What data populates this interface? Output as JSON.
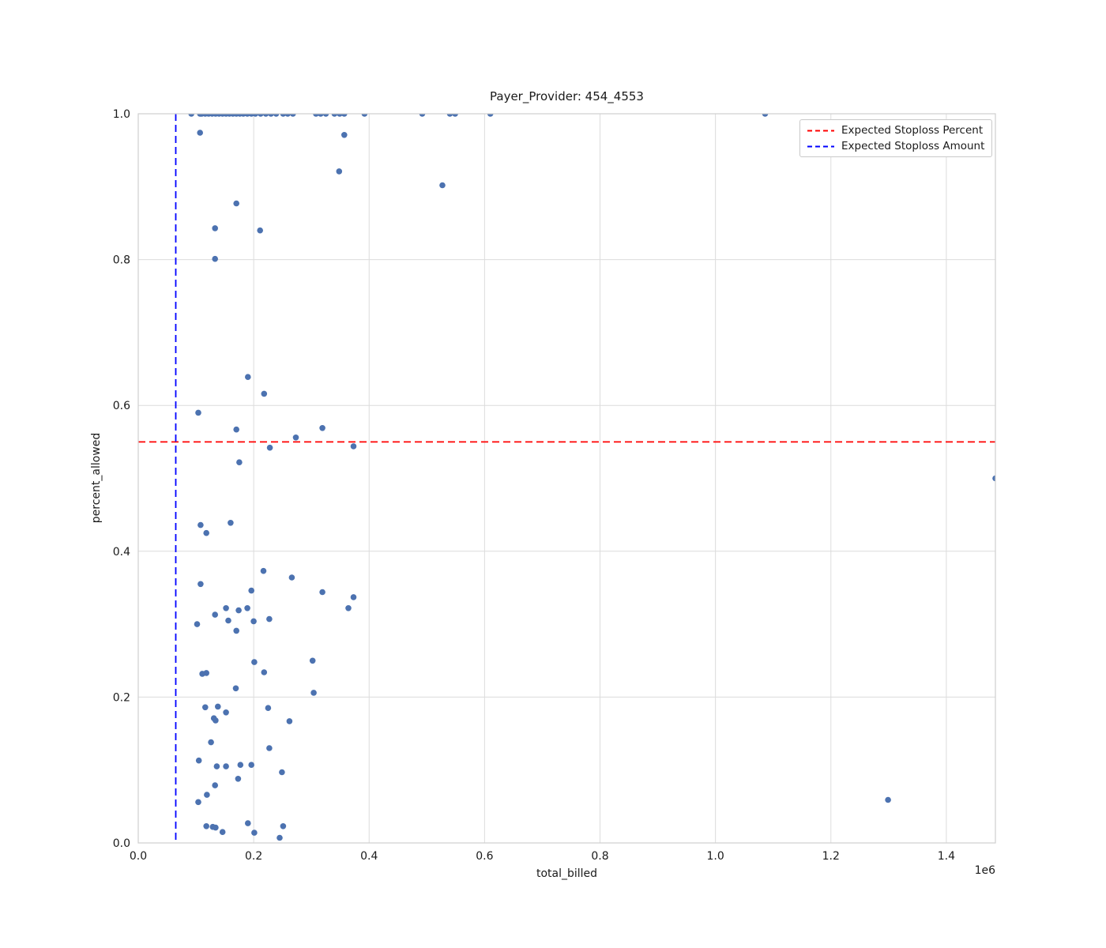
{
  "figure": {
    "title": "Payer_Provider: 454_4553",
    "xlabel": "total_billed",
    "ylabel": "percent_allowed",
    "x_offset_text": "1e6"
  },
  "legend": {
    "items": [
      {
        "label": "Expected Stoploss Percent",
        "color": "#ff0000",
        "style": "dashed"
      },
      {
        "label": "Expected Stoploss Amount",
        "color": "#0000ff",
        "style": "dashed"
      }
    ]
  },
  "chart_data": {
    "type": "scatter",
    "title": "Payer_Provider: 454_4553",
    "xlabel": "total_billed",
    "ylabel": "percent_allowed",
    "x_unit_multiplier": "1e6",
    "xlim": [
      0,
      1485000
    ],
    "ylim": [
      0.0,
      1.0
    ],
    "xticks": {
      "values": [
        0,
        200000,
        400000,
        600000,
        800000,
        1000000,
        1200000,
        1400000
      ],
      "labels": [
        "0.0",
        "0.2",
        "0.4",
        "0.6",
        "0.8",
        "1.0",
        "1.2",
        "1.4"
      ]
    },
    "yticks": {
      "values": [
        0.0,
        0.2,
        0.4,
        0.6,
        0.8,
        1.0
      ],
      "labels": [
        "0.0",
        "0.2",
        "0.4",
        "0.6",
        "0.8",
        "1.0"
      ]
    },
    "grid": true,
    "legend_position": "upper right",
    "point_color": "#4c72b0",
    "grid_color": "#dcdcdc",
    "spine_color": "#cfcfcf",
    "reference_lines": [
      {
        "orientation": "horizontal",
        "value": 0.55,
        "color": "#ff0000",
        "style": "dashed",
        "label": "Expected Stoploss Percent"
      },
      {
        "orientation": "vertical",
        "value": 65000,
        "color": "#0000ff",
        "style": "dashed",
        "label": "Expected Stoploss Amount"
      }
    ],
    "points": [
      [
        92000,
        1.0
      ],
      [
        107000,
        1.0
      ],
      [
        110000,
        1.0
      ],
      [
        116000,
        1.0
      ],
      [
        122000,
        1.0
      ],
      [
        128000,
        1.0
      ],
      [
        134000,
        1.0
      ],
      [
        140000,
        1.0
      ],
      [
        146000,
        1.0
      ],
      [
        152000,
        1.0
      ],
      [
        158000,
        1.0
      ],
      [
        164000,
        1.0
      ],
      [
        170000,
        1.0
      ],
      [
        176000,
        1.0
      ],
      [
        182000,
        1.0
      ],
      [
        189000,
        1.0
      ],
      [
        196000,
        1.0
      ],
      [
        203000,
        1.0
      ],
      [
        212000,
        1.0
      ],
      [
        221000,
        1.0
      ],
      [
        230000,
        1.0
      ],
      [
        239000,
        1.0
      ],
      [
        251000,
        1.0
      ],
      [
        259000,
        1.0
      ],
      [
        268000,
        1.0
      ],
      [
        308000,
        1.0
      ],
      [
        316000,
        1.0
      ],
      [
        325000,
        1.0
      ],
      [
        340000,
        1.0
      ],
      [
        349000,
        1.0
      ],
      [
        357000,
        1.0
      ],
      [
        392000,
        1.0
      ],
      [
        492000,
        1.0
      ],
      [
        540000,
        1.0
      ],
      [
        549000,
        1.0
      ],
      [
        610000,
        1.0
      ],
      [
        1086000,
        1.0
      ],
      [
        107000,
        0.974
      ],
      [
        357000,
        0.971
      ],
      [
        348000,
        0.921
      ],
      [
        527000,
        0.902
      ],
      [
        170000,
        0.877
      ],
      [
        133000,
        0.843
      ],
      [
        211000,
        0.84
      ],
      [
        133000,
        0.801
      ],
      [
        190000,
        0.639
      ],
      [
        218000,
        0.616
      ],
      [
        104000,
        0.59
      ],
      [
        170000,
        0.567
      ],
      [
        319000,
        0.569
      ],
      [
        273000,
        0.556
      ],
      [
        228000,
        0.542
      ],
      [
        373000,
        0.544
      ],
      [
        175000,
        0.522
      ],
      [
        1485000,
        0.5
      ],
      [
        160000,
        0.439
      ],
      [
        108000,
        0.436
      ],
      [
        118000,
        0.425
      ],
      [
        217000,
        0.373
      ],
      [
        266000,
        0.364
      ],
      [
        108000,
        0.355
      ],
      [
        196000,
        0.346
      ],
      [
        319000,
        0.344
      ],
      [
        373000,
        0.337
      ],
      [
        364000,
        0.322
      ],
      [
        152000,
        0.322
      ],
      [
        174000,
        0.319
      ],
      [
        189000,
        0.322
      ],
      [
        133000,
        0.313
      ],
      [
        156000,
        0.305
      ],
      [
        200000,
        0.304
      ],
      [
        227000,
        0.307
      ],
      [
        102000,
        0.3
      ],
      [
        170000,
        0.291
      ],
      [
        201000,
        0.248
      ],
      [
        302000,
        0.25
      ],
      [
        111000,
        0.232
      ],
      [
        118000,
        0.233
      ],
      [
        218000,
        0.234
      ],
      [
        169000,
        0.212
      ],
      [
        304000,
        0.206
      ],
      [
        116000,
        0.186
      ],
      [
        138000,
        0.187
      ],
      [
        152000,
        0.179
      ],
      [
        131000,
        0.171
      ],
      [
        134000,
        0.168
      ],
      [
        225000,
        0.185
      ],
      [
        262000,
        0.167
      ],
      [
        126000,
        0.138
      ],
      [
        227000,
        0.13
      ],
      [
        105000,
        0.113
      ],
      [
        136000,
        0.105
      ],
      [
        152000,
        0.105
      ],
      [
        177000,
        0.107
      ],
      [
        196000,
        0.107
      ],
      [
        249000,
        0.097
      ],
      [
        173000,
        0.088
      ],
      [
        133000,
        0.079
      ],
      [
        119000,
        0.066
      ],
      [
        104000,
        0.056
      ],
      [
        1299000,
        0.059
      ],
      [
        190000,
        0.027
      ],
      [
        118000,
        0.023
      ],
      [
        129000,
        0.022
      ],
      [
        134000,
        0.021
      ],
      [
        146000,
        0.015
      ],
      [
        251000,
        0.023
      ],
      [
        201000,
        0.014
      ],
      [
        245000,
        0.007
      ]
    ]
  }
}
